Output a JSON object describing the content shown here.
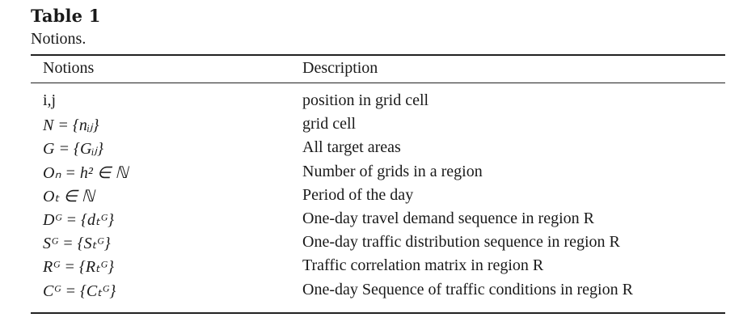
{
  "caption": {
    "title": "Table 1",
    "subtitle": "Notions."
  },
  "table": {
    "columns": [
      "Notions",
      "Description"
    ],
    "rows": [
      {
        "notion": "i,j",
        "description": "position in grid cell"
      },
      {
        "notion": "N = {nᵢⱼ}",
        "description": "grid cell"
      },
      {
        "notion": "G = {Gᵢⱼ}",
        "description": "All target areas"
      },
      {
        "notion": "Oₙ = h² ∈ ℕ",
        "description": "Number of grids in a region"
      },
      {
        "notion": "Oₜ ∈ ℕ",
        "description": "Period of the day"
      },
      {
        "notion": "Dᴳ = {dₜᴳ}",
        "description": "One-day travel demand sequence in region R"
      },
      {
        "notion": "Sᴳ = {Sₜᴳ}",
        "description": "One-day traffic distribution sequence in region R"
      },
      {
        "notion": "Rᴳ = {Rₜᴳ}",
        "description": "Traffic correlation matrix in region R"
      },
      {
        "notion": "Cᴳ = {Cₜᴳ}",
        "description": "One-day Sequence of traffic conditions in region R"
      }
    ]
  }
}
